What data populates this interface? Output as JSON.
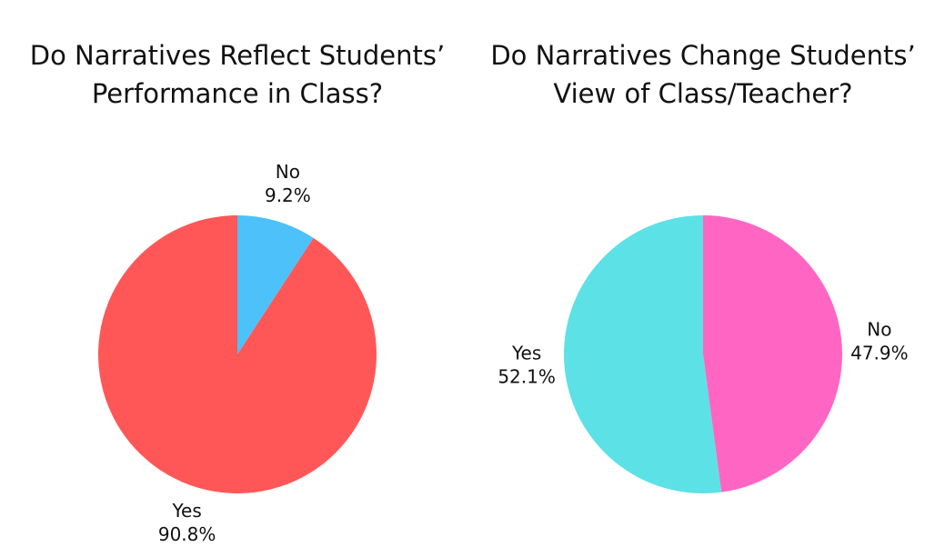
{
  "chart_data": [
    {
      "type": "pie",
      "title": "Do Narratives Reflect Students’ Performance in Class?",
      "categories": [
        "No",
        "Yes"
      ],
      "values": [
        9.2,
        90.8
      ],
      "value_labels": [
        "9.2%",
        "90.8%"
      ],
      "colors": [
        "#4dc1f9",
        "#ff5757"
      ]
    },
    {
      "type": "pie",
      "title": "Do Narratives Change Students’ View of Class/Teacher?",
      "categories": [
        "No",
        "Yes"
      ],
      "values": [
        47.9,
        52.1
      ],
      "value_labels": [
        "47.9%",
        "52.1%"
      ],
      "colors": [
        "#ff66c4",
        "#5ce1e6"
      ]
    }
  ]
}
